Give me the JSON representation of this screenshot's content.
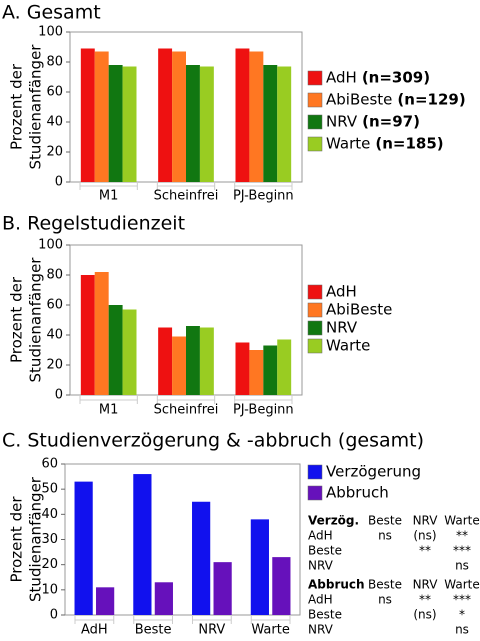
{
  "chart_data": [
    {
      "type": "bar",
      "title": "A. Gesamt",
      "ylabel": [
        "Prozent der",
        "Studienanfänger"
      ],
      "categories": [
        "M1",
        "Scheinfrei",
        "PJ-Beginn"
      ],
      "series": [
        {
          "name": "AdH",
          "sample_size_label": "(n=309)",
          "color": "#ee1111",
          "values": [
            89,
            89,
            89
          ]
        },
        {
          "name": "AbiBeste",
          "sample_size_label": "(n=129)",
          "color": "#ff7722",
          "values": [
            87,
            87,
            87
          ]
        },
        {
          "name": "NRV",
          "sample_size_label": "(n=97)",
          "color": "#117711",
          "values": [
            78,
            78,
            78
          ]
        },
        {
          "name": "Warte",
          "sample_size_label": "(n=185)",
          "color": "#99cc22",
          "values": [
            77,
            77,
            77
          ]
        }
      ],
      "ylim": [
        0,
        100
      ],
      "yticks": [
        0,
        20,
        40,
        60,
        80,
        100
      ],
      "grid": false
    },
    {
      "type": "bar",
      "title": "B. Regelstudienzeit",
      "ylabel": [
        "Prozent der",
        "Studienanfänger"
      ],
      "categories": [
        "M1",
        "Scheinfrei",
        "PJ-Beginn"
      ],
      "series": [
        {
          "name": "AdH",
          "color": "#ee1111",
          "values": [
            80,
            45,
            35
          ]
        },
        {
          "name": "AbiBeste",
          "color": "#ff7722",
          "values": [
            82,
            39,
            30
          ]
        },
        {
          "name": "NRV",
          "color": "#117711",
          "values": [
            60,
            46,
            33
          ]
        },
        {
          "name": "Warte",
          "color": "#99cc22",
          "values": [
            57,
            45,
            37
          ]
        }
      ],
      "ylim": [
        0,
        100
      ],
      "yticks": [
        0,
        20,
        40,
        60,
        80,
        100
      ],
      "grid": false
    },
    {
      "type": "bar",
      "title": "C. Studienverzögerung & -abbruch (gesamt)",
      "ylabel": [
        "Prozent der",
        "Studienanfänger"
      ],
      "categories": [
        "AdH",
        "Beste",
        "NRV",
        "Warte"
      ],
      "series": [
        {
          "name": "Verzögerung",
          "color": "#1111ee",
          "values": [
            53,
            56,
            45,
            38
          ]
        },
        {
          "name": "Abbruch",
          "color": "#6611bb",
          "values": [
            11,
            13,
            21,
            23
          ]
        }
      ],
      "ylim": [
        0,
        60
      ],
      "yticks": [
        0,
        10,
        20,
        30,
        40,
        50,
        60
      ],
      "grid": false
    }
  ],
  "significance_table": {
    "sections": [
      {
        "header": [
          "Verzög.",
          "Beste",
          "NRV",
          "Warte"
        ],
        "rows": [
          [
            "AdH",
            "ns",
            "(ns)",
            "**"
          ],
          [
            "Beste",
            null,
            "**",
            "***"
          ],
          [
            "NRV",
            null,
            null,
            "ns"
          ]
        ]
      },
      {
        "header": [
          "Abbruch",
          "Beste",
          "NRV",
          "Warte"
        ],
        "rows": [
          [
            "AdH",
            "ns",
            "**",
            "***"
          ],
          [
            "Beste",
            null,
            "(ns)",
            "*"
          ],
          [
            "NRV",
            null,
            null,
            "ns"
          ]
        ]
      }
    ]
  }
}
